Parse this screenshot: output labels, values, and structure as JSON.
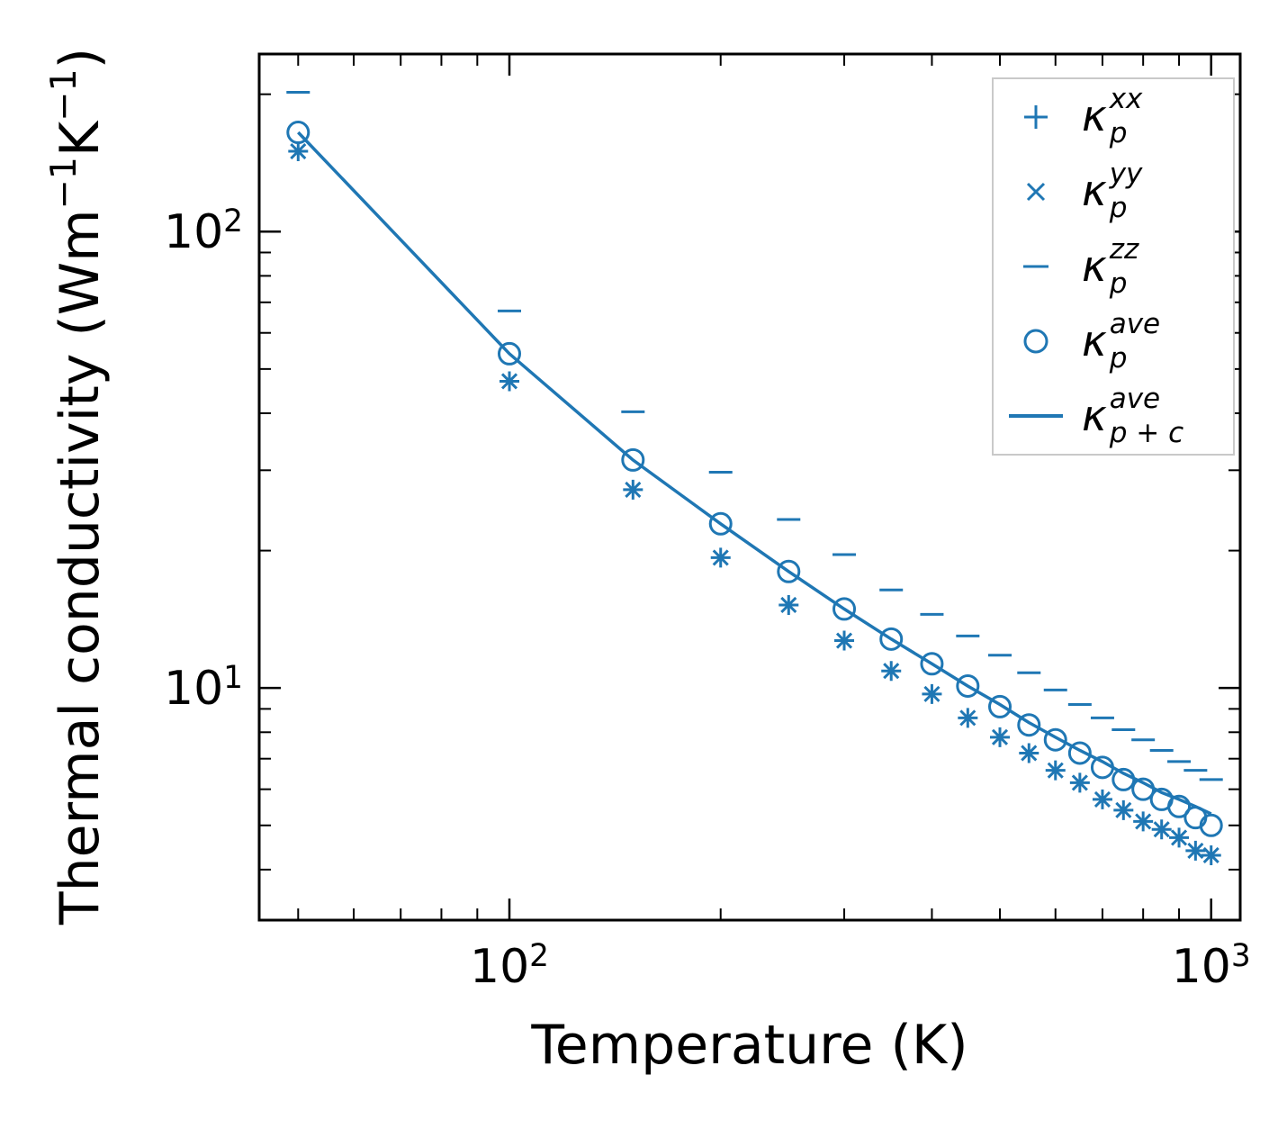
{
  "chart_data": {
    "type": "scatter",
    "title": "",
    "xlabel": "Temperature (K)",
    "ylabel": "Thermal conductivity (Wm⁻¹K⁻¹)",
    "ylabel_parts": [
      "Thermal conductivity (Wm",
      {
        "sup": "−1"
      },
      "K",
      {
        "sup": "−1"
      },
      ")"
    ],
    "xscale": "log",
    "yscale": "log",
    "xlim": [
      44,
      1100
    ],
    "ylim": [
      3.1,
      245
    ],
    "grid": false,
    "color": "#1f77b4",
    "x_major_ticks": [
      {
        "value": 100,
        "base": "10",
        "exp": "2"
      },
      {
        "value": 1000,
        "base": "10",
        "exp": "3"
      }
    ],
    "y_major_ticks": [
      {
        "value": 10,
        "base": "10",
        "exp": "1"
      },
      {
        "value": 100,
        "base": "10",
        "exp": "2"
      }
    ],
    "x": [
      50,
      100,
      150,
      200,
      250,
      300,
      350,
      400,
      450,
      500,
      550,
      600,
      650,
      700,
      750,
      800,
      850,
      900,
      950,
      1000
    ],
    "series": [
      {
        "name": "kappa_p_xx",
        "marker": "plus",
        "label": {
          "base": "κ",
          "sup": "xx",
          "sub": "p"
        },
        "values": [
          150,
          47,
          27.2,
          19.3,
          15.2,
          12.7,
          10.9,
          9.7,
          8.6,
          7.8,
          7.2,
          6.6,
          6.2,
          5.7,
          5.4,
          5.1,
          4.9,
          4.7,
          4.4,
          4.3
        ]
      },
      {
        "name": "kappa_p_yy",
        "marker": "x",
        "label": {
          "base": "κ",
          "sup": "yy",
          "sub": "p"
        },
        "values": [
          150,
          47,
          27.2,
          19.3,
          15.2,
          12.7,
          10.9,
          9.7,
          8.6,
          7.8,
          7.2,
          6.6,
          6.2,
          5.7,
          5.4,
          5.1,
          4.9,
          4.7,
          4.4,
          4.3
        ]
      },
      {
        "name": "kappa_p_zz",
        "marker": "hline",
        "label": {
          "base": "κ",
          "sup": "zz",
          "sub": "p"
        },
        "values": [
          202,
          67,
          40.3,
          29.7,
          23.4,
          19.6,
          16.4,
          14.5,
          13.0,
          11.8,
          10.8,
          9.9,
          9.2,
          8.6,
          8.1,
          7.7,
          7.3,
          6.9,
          6.6,
          6.3
        ]
      },
      {
        "name": "kappa_p_ave",
        "marker": "circle",
        "label": {
          "base": "κ",
          "sup": "ave",
          "sub": "p"
        },
        "values": [
          165,
          54,
          31.6,
          22.9,
          18.0,
          14.9,
          12.8,
          11.3,
          10.1,
          9.1,
          8.3,
          7.7,
          7.2,
          6.7,
          6.3,
          6.0,
          5.7,
          5.5,
          5.2,
          5.0
        ]
      },
      {
        "name": "kappa_p_plus_c_ave",
        "marker": "line",
        "label": {
          "base": "κ",
          "sup": "ave",
          "sub": "p + c"
        },
        "values": [
          165,
          54,
          31.6,
          22.9,
          18.0,
          14.9,
          12.8,
          11.3,
          10.1,
          9.2,
          8.4,
          7.8,
          7.3,
          6.9,
          6.5,
          6.2,
          5.9,
          5.7,
          5.5,
          5.3
        ]
      }
    ],
    "legend": {
      "position": "upper right"
    }
  }
}
